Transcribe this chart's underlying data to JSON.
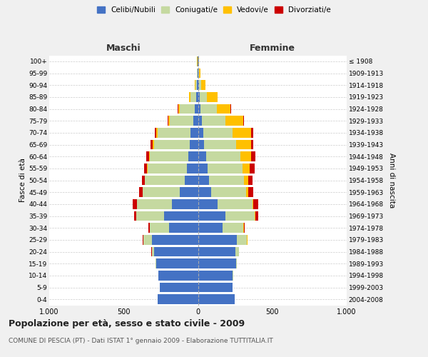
{
  "age_groups": [
    "0-4",
    "5-9",
    "10-14",
    "15-19",
    "20-24",
    "25-29",
    "30-34",
    "35-39",
    "40-44",
    "45-49",
    "50-54",
    "55-59",
    "60-64",
    "65-69",
    "70-74",
    "75-79",
    "80-84",
    "85-89",
    "90-94",
    "95-99",
    "100+"
  ],
  "birth_years": [
    "2004-2008",
    "1999-2003",
    "1994-1998",
    "1989-1993",
    "1984-1988",
    "1979-1983",
    "1974-1978",
    "1969-1973",
    "1964-1968",
    "1959-1963",
    "1954-1958",
    "1949-1953",
    "1944-1948",
    "1939-1943",
    "1934-1938",
    "1929-1933",
    "1924-1928",
    "1919-1923",
    "1914-1918",
    "1909-1913",
    "≤ 1908"
  ],
  "maschi": {
    "celibi": [
      270,
      255,
      265,
      280,
      295,
      310,
      195,
      230,
      175,
      120,
      90,
      75,
      65,
      55,
      50,
      30,
      20,
      10,
      5,
      3,
      2
    ],
    "coniugati": [
      0,
      0,
      2,
      3,
      15,
      55,
      130,
      185,
      235,
      250,
      265,
      265,
      260,
      240,
      220,
      160,
      100,
      40,
      10,
      4,
      2
    ],
    "vedovi": [
      0,
      0,
      0,
      0,
      0,
      0,
      0,
      1,
      1,
      1,
      2,
      3,
      5,
      8,
      10,
      10,
      10,
      10,
      5,
      2,
      1
    ],
    "divorziati": [
      0,
      0,
      0,
      0,
      2,
      5,
      10,
      15,
      30,
      25,
      20,
      20,
      20,
      15,
      10,
      5,
      5,
      2,
      0,
      0,
      0
    ]
  },
  "femmine": {
    "nubili": [
      245,
      235,
      235,
      255,
      250,
      260,
      165,
      185,
      130,
      90,
      75,
      65,
      55,
      40,
      35,
      25,
      18,
      12,
      8,
      3,
      2
    ],
    "coniugate": [
      0,
      0,
      2,
      5,
      25,
      70,
      140,
      195,
      235,
      235,
      235,
      235,
      230,
      215,
      200,
      160,
      110,
      50,
      12,
      5,
      2
    ],
    "vedove": [
      0,
      0,
      0,
      0,
      0,
      1,
      2,
      4,
      8,
      15,
      30,
      50,
      70,
      100,
      120,
      120,
      90,
      70,
      30,
      8,
      3
    ],
    "divorziate": [
      0,
      0,
      0,
      0,
      1,
      3,
      8,
      20,
      30,
      30,
      25,
      30,
      30,
      15,
      15,
      5,
      5,
      2,
      0,
      0,
      0
    ]
  },
  "colors": {
    "celibi": "#4472C4",
    "coniugati": "#c5d9a0",
    "vedovi": "#ffc000",
    "divorziati": "#cc0000"
  },
  "xlim": 1000,
  "title": "Popolazione per età, sesso e stato civile - 2009",
  "subtitle": "COMUNE DI PESCIA (PT) - Dati ISTAT 1° gennaio 2009 - Elaborazione TUTTITALIA.IT",
  "xlabel_left": "Maschi",
  "xlabel_right": "Femmine",
  "ylabel_left": "Fasce di età",
  "ylabel_right": "Anni di nascita",
  "bg_color": "#f0f0f0",
  "plot_bg": "#ffffff"
}
